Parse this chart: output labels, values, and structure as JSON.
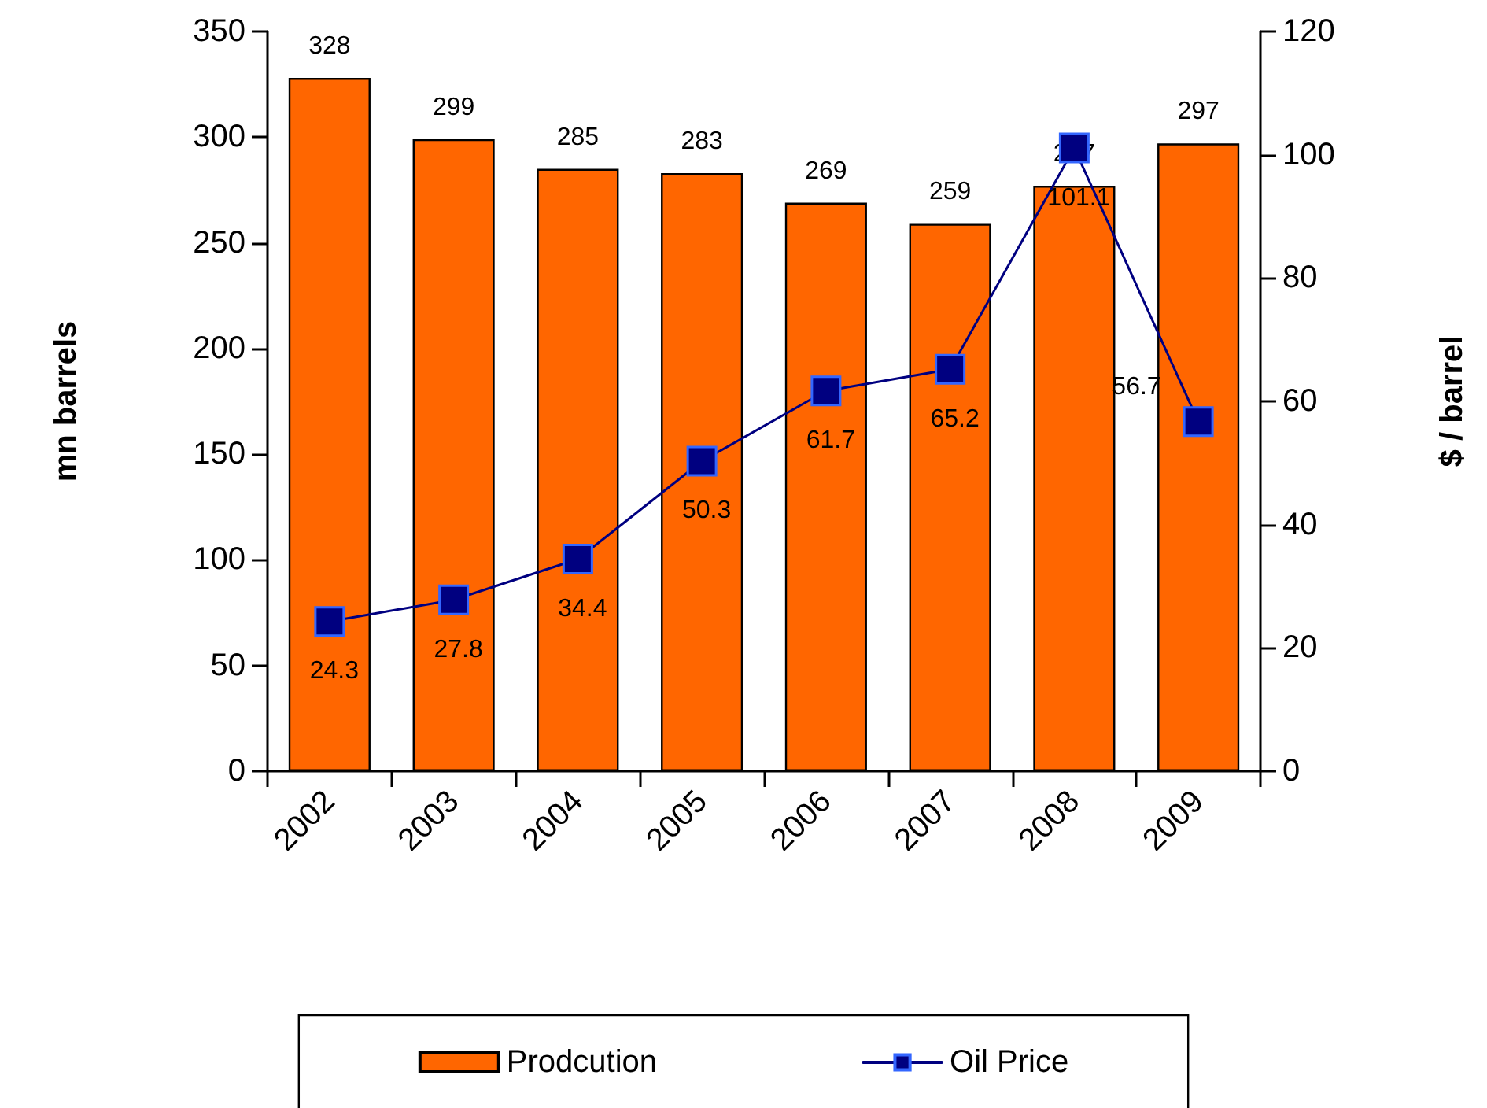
{
  "chart_data": {
    "type": "bar",
    "categories": [
      "2002",
      "2003",
      "2004",
      "2005",
      "2006",
      "2007",
      "2008",
      "2009"
    ],
    "series": [
      {
        "name": "Prodcution",
        "color": "#ff6600",
        "values": [
          328,
          299,
          285,
          283,
          269,
          259,
          277,
          297
        ]
      },
      {
        "name": "Oil Price",
        "type": "line",
        "axis": "y2",
        "color": "#000080",
        "values": [
          24.3,
          27.8,
          34.4,
          50.3,
          61.7,
          65.2,
          101.1,
          56.7
        ]
      }
    ],
    "ylabel": "mn barrels",
    "y2label": "$ / barrel",
    "ylim": [
      0,
      350
    ],
    "yticks": [
      0,
      50,
      100,
      150,
      200,
      250,
      300,
      350
    ],
    "y2lim": [
      0,
      120
    ],
    "y2ticks": [
      0,
      20,
      40,
      60,
      80,
      100,
      120
    ],
    "data_labels": true,
    "legend": "bottom",
    "grid": false,
    "marker": "square",
    "line_style": "solid"
  }
}
